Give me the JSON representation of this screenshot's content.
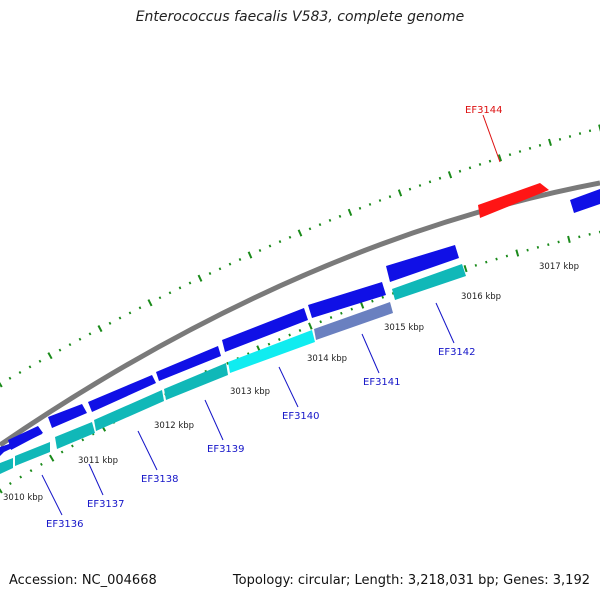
{
  "title": "Enterococcus faecalis V583, complete genome",
  "footer": {
    "accession": "Accession: NC_004668",
    "summary": "Topology: circular; Length: 3,218,031 bp; Genes: 3,192"
  },
  "colors": {
    "backbone": "#7a7a7a",
    "forward_gene": "#1010e6",
    "reverse_gene": "#10b8b8",
    "highlight_gene": "#ff1515",
    "tick": "#1a8a1a",
    "gene_label": "#1515c8",
    "highlight_label": "#dd1010"
  },
  "kbp_labels": [
    "3010 kbp",
    "3011 kbp",
    "3012 kbp",
    "3013 kbp",
    "3014 kbp",
    "3015 kbp",
    "3016 kbp",
    "3017 kbp"
  ],
  "gene_labels": [
    {
      "name": "EF3136",
      "highlight": false
    },
    {
      "name": "EF3137",
      "highlight": false
    },
    {
      "name": "EF3138",
      "highlight": false
    },
    {
      "name": "EF3139",
      "highlight": false
    },
    {
      "name": "EF3140",
      "highlight": false
    },
    {
      "name": "EF3141",
      "highlight": false
    },
    {
      "name": "EF3142",
      "highlight": false
    },
    {
      "name": "EF3144",
      "highlight": true
    }
  ]
}
